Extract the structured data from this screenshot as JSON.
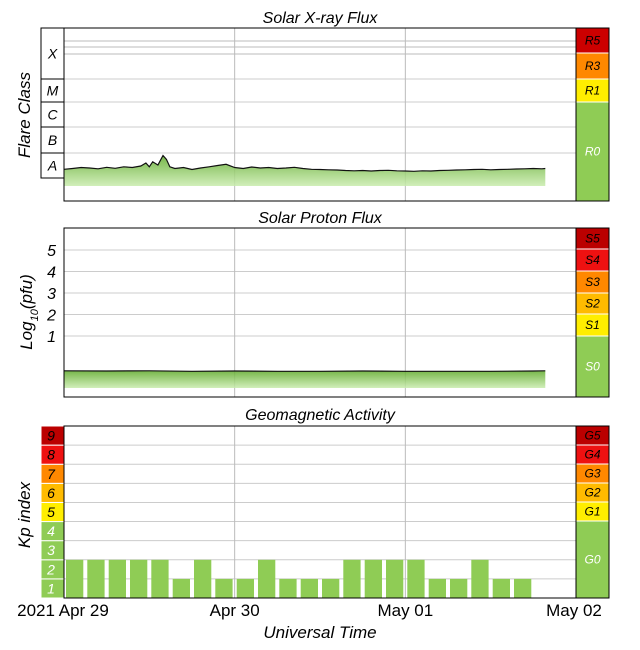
{
  "chart_data": [
    {
      "type": "area",
      "title": "Solar X-ray Flux",
      "ylabel": "Flare Class",
      "flare_classes": [
        "X",
        "M",
        "C",
        "B",
        "A"
      ],
      "scale_labels": [
        "R5",
        "R3",
        "R1",
        "R0"
      ],
      "colors": {
        "R5": "#cc0000",
        "R3": "#ff8800",
        "R1": "#ffee00",
        "R0": "#8fcc55"
      },
      "x_days": [
        0.0,
        0.05,
        0.1,
        0.15,
        0.2,
        0.25,
        0.3,
        0.35,
        0.4,
        0.45,
        0.48,
        0.5,
        0.52,
        0.55,
        0.58,
        0.6,
        0.62,
        0.65,
        0.7,
        0.75,
        0.8,
        0.85,
        0.9,
        0.95,
        1.0,
        1.05,
        1.1,
        1.15,
        1.2,
        1.25,
        1.3,
        1.35,
        1.4,
        1.45,
        1.5,
        1.55,
        1.6,
        1.65,
        1.7,
        1.75,
        1.8,
        1.85,
        1.9,
        1.95,
        2.0,
        2.05,
        2.1,
        2.15,
        2.2,
        2.25,
        2.3,
        2.35,
        2.4,
        2.45,
        2.5,
        2.55,
        2.6,
        2.65,
        2.7,
        2.75,
        2.8,
        2.82
      ],
      "log_flux": [
        -7.65,
        -7.62,
        -7.58,
        -7.6,
        -7.63,
        -7.57,
        -7.61,
        -7.55,
        -7.58,
        -7.52,
        -7.4,
        -7.55,
        -7.35,
        -7.48,
        -7.1,
        -7.25,
        -7.55,
        -7.62,
        -7.58,
        -7.66,
        -7.6,
        -7.55,
        -7.5,
        -7.45,
        -7.58,
        -7.62,
        -7.56,
        -7.6,
        -7.58,
        -7.62,
        -7.6,
        -7.57,
        -7.62,
        -7.65,
        -7.66,
        -7.67,
        -7.68,
        -7.7,
        -7.71,
        -7.7,
        -7.72,
        -7.7,
        -7.69,
        -7.71,
        -7.72,
        -7.73,
        -7.71,
        -7.72,
        -7.7,
        -7.69,
        -7.68,
        -7.67,
        -7.66,
        -7.65,
        -7.67,
        -7.66,
        -7.65,
        -7.64,
        -7.63,
        -7.62,
        -7.63,
        -7.62
      ]
    },
    {
      "type": "area",
      "title": "Solar Proton Flux",
      "ylabel": "Log10(pfu)",
      "ylabel_parts": {
        "base": "Log",
        "sub": "10",
        "rest": "(pfu)"
      },
      "yticks": [
        1,
        2,
        3,
        4,
        5
      ],
      "scale_labels": [
        "S5",
        "S4",
        "S3",
        "S2",
        "S1",
        "S0"
      ],
      "colors": {
        "S5": "#bb0000",
        "S4": "#ee1111",
        "S3": "#ff8800",
        "S2": "#ffbb00",
        "S1": "#ffee00",
        "S0": "#8fcc55"
      },
      "x_days": [
        0.0,
        0.25,
        0.5,
        0.75,
        1.0,
        1.25,
        1.5,
        1.75,
        2.0,
        2.25,
        2.5,
        2.75,
        2.82
      ],
      "log_pfu": [
        -0.62,
        -0.63,
        -0.62,
        -0.64,
        -0.63,
        -0.64,
        -0.64,
        -0.63,
        -0.64,
        -0.64,
        -0.64,
        -0.63,
        -0.62
      ]
    },
    {
      "type": "bar",
      "title": "Geomagnetic Activity",
      "ylabel": "Kp index",
      "xlabel": "Universal Time",
      "kp_levels": [
        "1",
        "2",
        "3",
        "4",
        "5",
        "6",
        "7",
        "8",
        "9"
      ],
      "scale_labels": [
        "G5",
        "G4",
        "G3",
        "G2",
        "G1",
        "G0"
      ],
      "colors": {
        "G5": "#bb0000",
        "G4": "#ee1111",
        "G3": "#ff8800",
        "G2": "#ffbb00",
        "G1": "#ffee00",
        "G0": "#8fcc55"
      },
      "kp_interval_hours": 3,
      "kp": [
        2,
        2,
        2,
        2,
        2,
        1,
        2,
        1,
        1,
        2,
        1,
        1,
        1,
        2,
        2,
        2,
        2,
        1,
        1,
        2,
        1,
        1
      ],
      "xticks": [
        {
          "day": 0,
          "label": "2021 Apr 29"
        },
        {
          "day": 1,
          "label": "Apr 30"
        },
        {
          "day": 2,
          "label": "May 01"
        },
        {
          "day": 3,
          "label": "May 02"
        }
      ],
      "x_range_days": [
        0,
        3
      ]
    }
  ]
}
